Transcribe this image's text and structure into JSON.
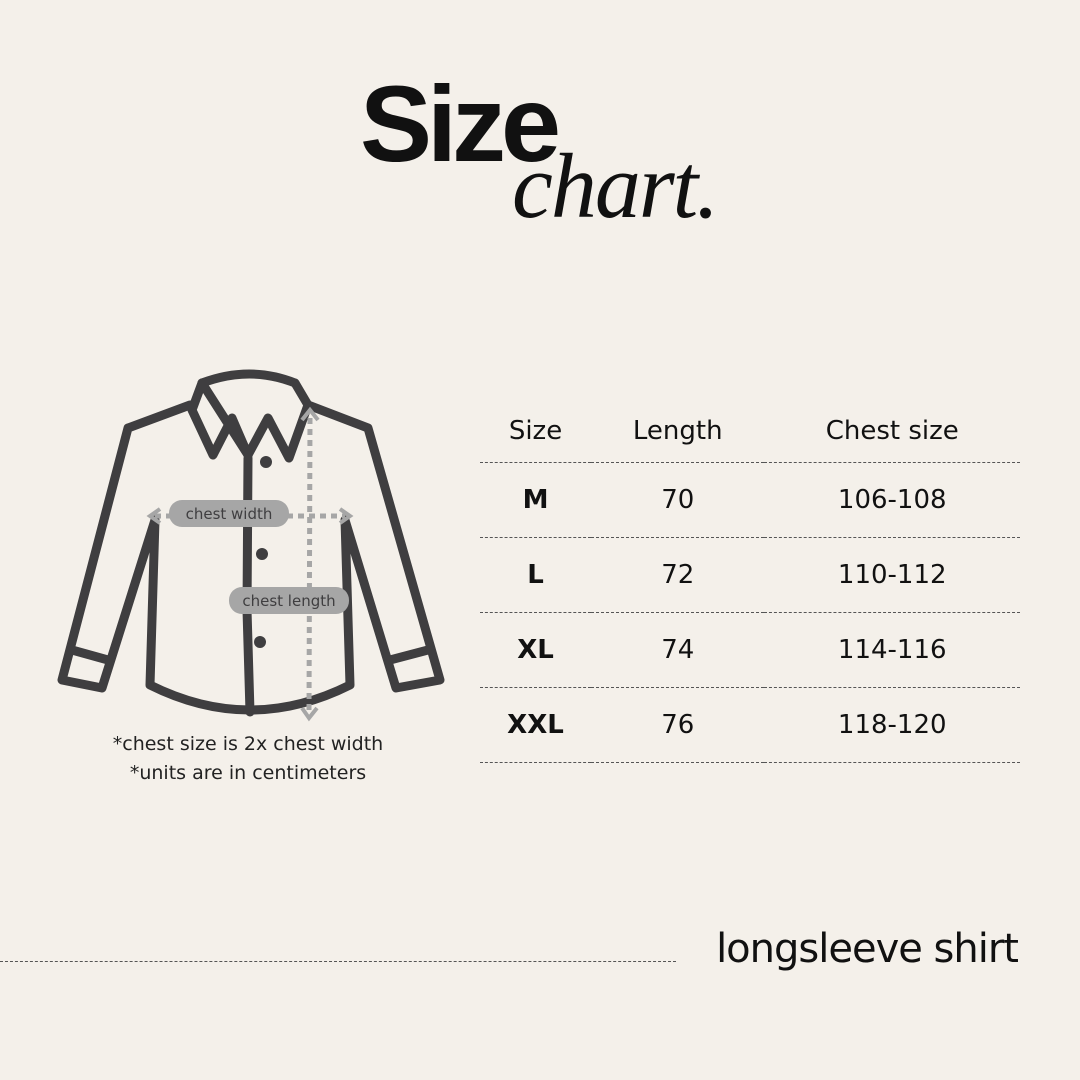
{
  "title": {
    "main": "Size",
    "script": "chart."
  },
  "diagram": {
    "chest_width_label": "chest width",
    "chest_length_label": "chest length"
  },
  "notes": [
    "*chest size is 2x chest width",
    "*units are in centimeters"
  ],
  "table": {
    "headers": [
      "Size",
      "Length",
      "Chest size"
    ],
    "rows": [
      [
        "M",
        "70",
        "106-108"
      ],
      [
        "L",
        "72",
        "110-112"
      ],
      [
        "XL",
        "74",
        "114-116"
      ],
      [
        "XXL",
        "76",
        "118-120"
      ]
    ]
  },
  "footer": "longsleeve shirt",
  "colors": {
    "background": "#f4f0ea",
    "outline": "#3f3e40",
    "measure": "#a6a6a6"
  }
}
